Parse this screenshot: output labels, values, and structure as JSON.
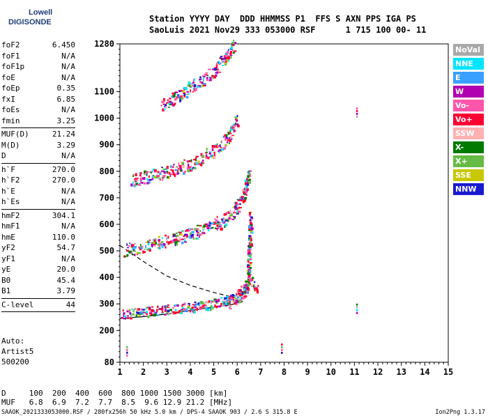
{
  "logo": {
    "line1": "Lowell",
    "line2": "DIGISONDE"
  },
  "header": {
    "line1": "Station YYYY DAY  DDD HHMMSS P1  FFS S AXN PPS IGA PS",
    "line2": "SaoLuis 2021 Nov29 333 053000 RSF      1 715 100 00- 11"
  },
  "params": [
    {
      "label": "foF2",
      "value": "6.450"
    },
    {
      "label": "foF1",
      "value": "N/A"
    },
    {
      "label": "foF1p",
      "value": "N/A"
    },
    {
      "label": "foE",
      "value": "N/A"
    },
    {
      "label": "foEp",
      "value": "0.35"
    },
    {
      "label": "fxI",
      "value": "6.85"
    },
    {
      "label": "foEs",
      "value": "N/A"
    },
    {
      "label": "fmin",
      "value": "3.25"
    },
    {
      "sep": true
    },
    {
      "label": "MUF(D)",
      "value": "21.24"
    },
    {
      "label": "M(D)",
      "value": "3.29"
    },
    {
      "label": "D",
      "value": "N/A"
    },
    {
      "sep": true
    },
    {
      "label": "h`F",
      "value": "270.0"
    },
    {
      "label": "h`F2",
      "value": "270.0"
    },
    {
      "label": "h`E",
      "value": "N/A"
    },
    {
      "label": "h`Es",
      "value": "N/A"
    },
    {
      "sep": true
    },
    {
      "label": "hmF2",
      "value": "304.1"
    },
    {
      "label": "hmF1",
      "value": "N/A"
    },
    {
      "label": "hmE",
      "value": "110.0"
    },
    {
      "label": "yF2",
      "value": "54.7"
    },
    {
      "label": "yF1",
      "value": "N/A"
    },
    {
      "label": "yE",
      "value": "20.0"
    },
    {
      "label": "B0",
      "value": "45.4"
    },
    {
      "label": "B1",
      "value": "3.79"
    },
    {
      "sep": true
    },
    {
      "label": "C-level",
      "value": "44"
    },
    {
      "sep": true
    }
  ],
  "auto": {
    "line1": "Auto:",
    "line2": "Artist5",
    "line3": "500200"
  },
  "legend": [
    {
      "label": "NoVal",
      "color": "#a9a9a9"
    },
    {
      "label": "NNE",
      "color": "#00e5ff"
    },
    {
      "label": "E",
      "color": "#3aa0ff"
    },
    {
      "label": "W",
      "color": "#b000b0"
    },
    {
      "label": "Vo-",
      "color": "#ff55aa"
    },
    {
      "label": "Vo+",
      "color": "#ff0033"
    },
    {
      "label": "SSW",
      "color": "#ffb0b0"
    },
    {
      "label": "X-",
      "color": "#007a00"
    },
    {
      "label": "X+",
      "color": "#66bb44"
    },
    {
      "label": "SSE",
      "color": "#c8c800"
    },
    {
      "label": "NNW",
      "color": "#1a1ad0"
    }
  ],
  "muf_table": {
    "line1": "D     100  200  400  600  800 1000 1500 3000 [km]",
    "line2": "MUF   6.8  6.9  7.2  7.7  8.5  9.6 12.9 21.2 [MHz]"
  },
  "footer": {
    "left": "SAAOK_2021333053000.RSF / 280fx256h 50 kHz 5.0 km / DPS-4 SAAOK 903 / 2.6 S 315.8 E",
    "right": "Ion2Png 1.3.17"
  },
  "chart_data": {
    "type": "scatter",
    "xlim": [
      1,
      15
    ],
    "ylim": [
      80,
      1280
    ],
    "x_ticks": [
      1,
      2,
      3,
      4,
      5,
      6,
      7,
      8,
      9,
      10,
      11,
      12,
      13,
      14,
      15
    ],
    "y_ticks": [
      80,
      200,
      300,
      400,
      500,
      600,
      700,
      800,
      900,
      1000,
      1100,
      1280
    ],
    "profile_solid": [
      [
        1,
        245
      ],
      [
        2,
        252
      ],
      [
        3,
        262
      ],
      [
        4,
        275
      ],
      [
        5,
        288
      ],
      [
        5.6,
        295
      ],
      [
        6,
        302
      ],
      [
        6.25,
        310
      ]
    ],
    "profile_dashed": [
      [
        1,
        520
      ],
      [
        2,
        460
      ],
      [
        3,
        405
      ],
      [
        4,
        370
      ],
      [
        5,
        343
      ],
      [
        5.6,
        330
      ],
      [
        6,
        320
      ]
    ],
    "traces": [
      {
        "name": "O-trace base",
        "points": [
          [
            1.1,
            265
          ],
          [
            2,
            272
          ],
          [
            3,
            280
          ],
          [
            4,
            290
          ],
          [
            5,
            303
          ],
          [
            5.5,
            312
          ],
          [
            6,
            325
          ],
          [
            6.3,
            345
          ],
          [
            6.45,
            400
          ],
          [
            6.5,
            520
          ],
          [
            6.55,
            640
          ]
        ]
      },
      {
        "name": "2nd hop",
        "points": [
          [
            1.2,
            505
          ],
          [
            2,
            520
          ],
          [
            3,
            540
          ],
          [
            4,
            565
          ],
          [
            5,
            600
          ],
          [
            5.6,
            630
          ],
          [
            6,
            670
          ],
          [
            6.3,
            720
          ],
          [
            6.5,
            800
          ]
        ]
      },
      {
        "name": "3rd hop",
        "points": [
          [
            1.5,
            770
          ],
          [
            2.5,
            790
          ],
          [
            3,
            800
          ],
          [
            4,
            830
          ],
          [
            5,
            880
          ],
          [
            5.6,
            930
          ],
          [
            6,
            1000
          ]
        ]
      },
      {
        "name": "4th hop",
        "points": [
          [
            2.8,
            1050
          ],
          [
            3.5,
            1090
          ],
          [
            4,
            1120
          ],
          [
            5,
            1180
          ],
          [
            5.5,
            1230
          ],
          [
            5.9,
            1280
          ]
        ]
      },
      {
        "name": "X-trace",
        "points": [
          [
            5.6,
            300
          ],
          [
            6,
            330
          ],
          [
            6.3,
            360
          ],
          [
            6.6,
            390
          ],
          [
            6.85,
            360
          ]
        ]
      }
    ],
    "isolated_points": [
      [
        11.1,
        1020
      ],
      [
        11.1,
        280
      ],
      [
        7.9,
        130
      ],
      [
        1.3,
        120
      ]
    ]
  }
}
